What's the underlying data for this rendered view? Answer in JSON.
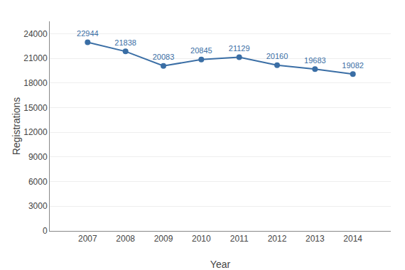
{
  "chart_data": {
    "type": "line",
    "x": [
      2007,
      2008,
      2009,
      2010,
      2011,
      2012,
      2013,
      2014
    ],
    "values": [
      22944,
      21838,
      20083,
      20845,
      21129,
      20160,
      19683,
      19082
    ],
    "color": "#3A6EA5",
    "marker": "circle",
    "xlabel": "Year",
    "ylabel": "Registrations",
    "xlim": [
      2006,
      2015
    ],
    "xticks": [
      2007,
      2008,
      2009,
      2010,
      2011,
      2012,
      2013,
      2014
    ],
    "ylim": [
      0,
      25500
    ],
    "yticks": [
      0,
      3000,
      6000,
      9000,
      12000,
      15000,
      18000,
      21000,
      24000
    ],
    "grid": "y",
    "data_labels": true
  }
}
